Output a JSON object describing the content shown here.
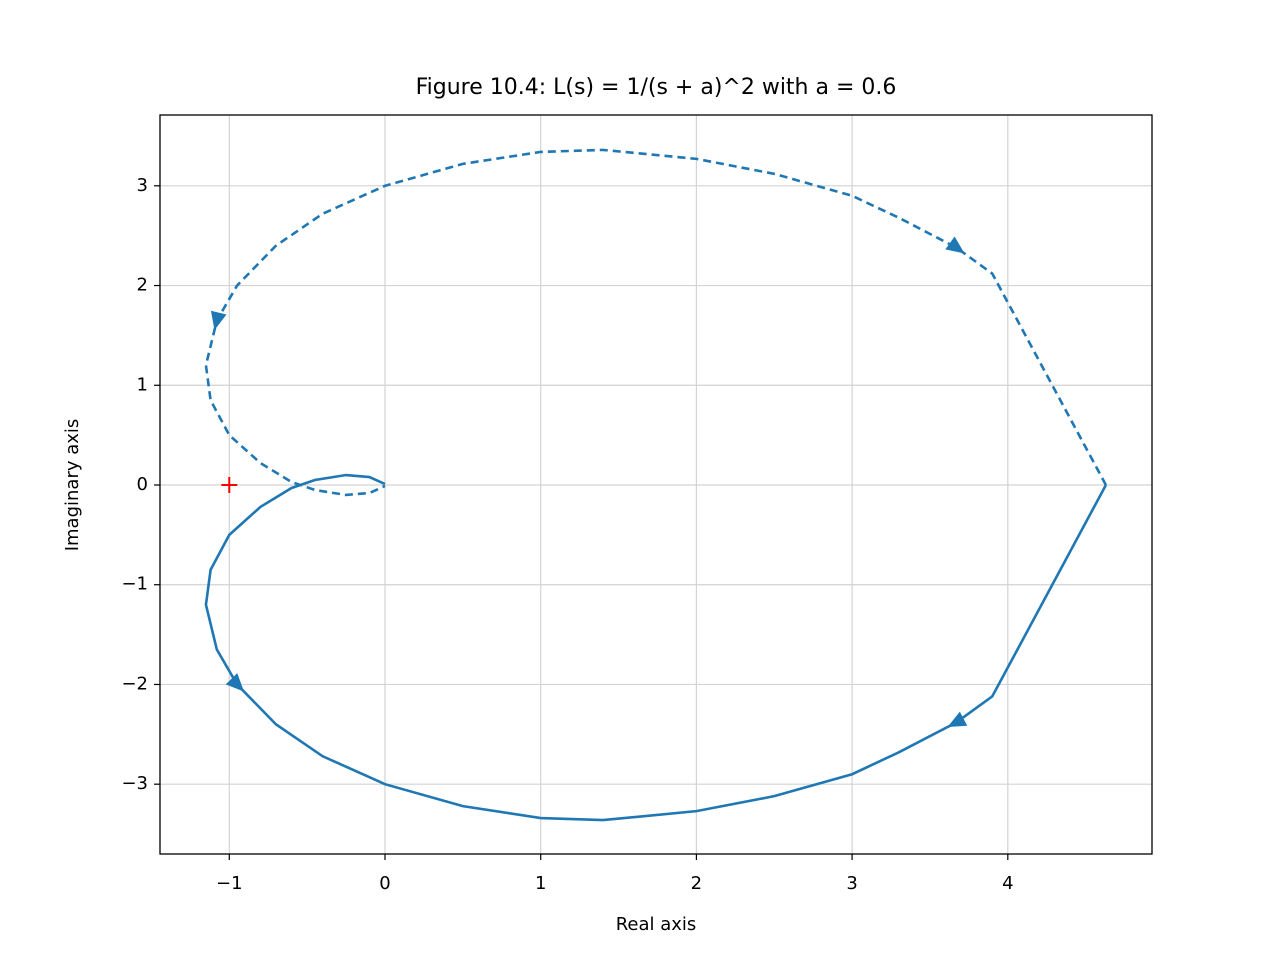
{
  "chart_data": {
    "type": "line",
    "title": "Figure 10.4: L(s) = 1/(s + a)^2 with a = 0.6",
    "x_label": "Real axis",
    "y_label": "Imaginary axis",
    "xlim": [
      -1.445,
      4.926
    ],
    "ylim": [
      -3.7,
      3.71
    ],
    "xticks": [
      {
        "value": -1,
        "label": "−1"
      },
      0,
      1,
      2,
      3,
      4
    ],
    "yticks": [
      {
        "value": -3,
        "label": "−3"
      },
      {
        "value": -2,
        "label": "−2"
      },
      {
        "value": -1,
        "label": "−1"
      },
      0,
      1,
      2,
      3
    ],
    "grid": true,
    "series": [
      {
        "color": "#1f77b4",
        "style": "solid",
        "x": [
          4.63,
          3.9,
          3.67,
          3.3,
          3.0,
          2.5,
          2.0,
          1.4,
          1.0,
          0.5,
          0.0,
          -0.4,
          -0.7,
          -0.95,
          -1.08,
          -1.15,
          -1.12,
          -1.0,
          -0.8,
          -0.6,
          -0.45,
          -0.25,
          -0.1,
          0.0
        ],
        "y": [
          0,
          -2.12,
          -2.38,
          -2.68,
          -2.9,
          -3.12,
          -3.27,
          -3.36,
          -3.34,
          -3.22,
          -3.0,
          -2.72,
          -2.4,
          -2.0,
          -1.65,
          -1.2,
          -0.85,
          -0.5,
          -0.22,
          -0.03,
          0.05,
          0.1,
          0.08,
          0.01
        ]
      },
      {
        "color": "#1f77b4",
        "style": "dashed",
        "x": [
          4.63,
          3.9,
          3.67,
          3.3,
          3.0,
          2.5,
          2.0,
          1.4,
          1.0,
          0.5,
          0.0,
          -0.4,
          -0.7,
          -0.95,
          -1.08,
          -1.15,
          -1.12,
          -1.0,
          -0.8,
          -0.6,
          -0.45,
          -0.25,
          -0.1,
          0.0
        ],
        "y": [
          0,
          2.12,
          2.38,
          2.68,
          2.9,
          3.12,
          3.27,
          3.36,
          3.34,
          3.22,
          3.0,
          2.72,
          2.4,
          2.0,
          1.65,
          1.2,
          0.85,
          0.5,
          0.22,
          0.03,
          -0.05,
          -0.1,
          -0.08,
          -0.01
        ]
      }
    ],
    "points": [
      {
        "x": -1,
        "y": 0,
        "color": "red"
      }
    ]
  }
}
